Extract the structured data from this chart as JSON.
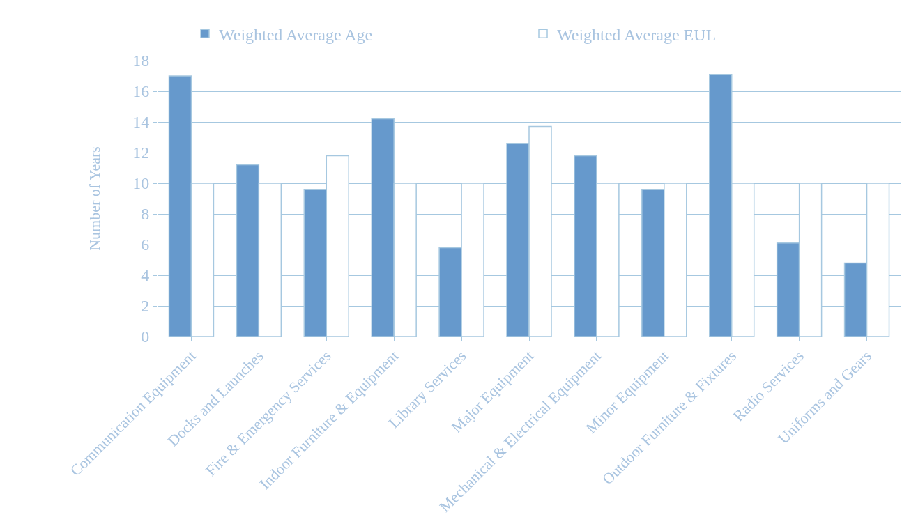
{
  "chart_data": {
    "type": "bar",
    "ylabel": "Number of Years",
    "categories": [
      "Communication Equipment",
      "Docks and Launches",
      "Fire & Emergency Services",
      "Indoor Furniture & Equipment",
      "Library Services",
      "Major Equipment",
      "Mechanical & Electrical Equipment",
      "Minor Equipment",
      "Outdoor Furniture & Fixtures",
      "Radio Services",
      "Uniforms and Gears"
    ],
    "series": [
      {
        "name": "Weighted Average Age",
        "color": "#6699cc",
        "values": [
          17.0,
          11.2,
          9.6,
          14.2,
          5.8,
          12.6,
          11.8,
          9.6,
          17.1,
          6.1,
          4.8
        ]
      },
      {
        "name": "Weighted Average EUL",
        "color": "#ffffff",
        "values": [
          10,
          10,
          11.8,
          10,
          10,
          13.7,
          10,
          10,
          10,
          10,
          10
        ]
      }
    ],
    "ylim": [
      0,
      18
    ],
    "yticks": [
      0,
      2,
      4,
      6,
      8,
      10,
      12,
      14,
      16,
      18
    ],
    "grid": "y",
    "legend": "top"
  }
}
